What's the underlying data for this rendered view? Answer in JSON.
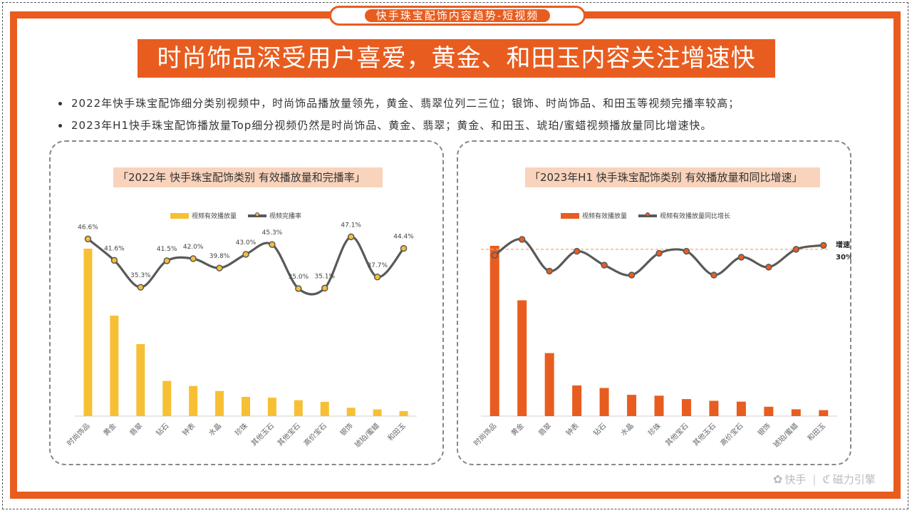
{
  "header": {
    "tab_title": "快手珠宝配饰内容趋势-短视频",
    "headline": "时尚饰品深受用户喜爱，黄金、和田玉内容关注增速快"
  },
  "bullets": [
    "2022年快手珠宝配饰细分类别视频中，时尚饰品播放量领先，黄金、翡翠位列二三位；银饰、时尚饰品、和田玉等视频完播率较高；",
    "2023年H1快手珠宝配饰播放量Top细分视频仍然是时尚饰品、黄金、翡翠；黄金、和田玉、琥珀/蜜蜡视频播放量同比增速快。"
  ],
  "colors": {
    "accent": "#e85d1f",
    "bar_2022": "#f7c034",
    "bar_2023": "#e85d1f",
    "line": "#595959"
  },
  "chart_data": [
    {
      "type": "bar",
      "title": "「2022年 快手珠宝配饰类别 有效播放量和完播率」",
      "categories": [
        "时尚饰品",
        "黄金",
        "翡翠",
        "钻石",
        "钟表",
        "水晶",
        "珍珠",
        "其他玉石",
        "其他宝石",
        "高价宝石",
        "银饰",
        "琥珀/蜜蜡",
        "和田玉"
      ],
      "series": [
        {
          "name": "视频有效播放量",
          "kind": "bar",
          "values": [
            100,
            60,
            43,
            21,
            18,
            15,
            11.5,
            11,
            9.5,
            8.5,
            5,
            4,
            3
          ]
        },
        {
          "name": "视频完播率",
          "kind": "line",
          "values": [
            46.6,
            41.6,
            35.3,
            41.5,
            42.0,
            39.8,
            43.0,
            45.3,
            35.0,
            35.1,
            47.1,
            37.7,
            44.4
          ],
          "labels": [
            "46.6%",
            "41.6%",
            "35.3%",
            "41.5%",
            "42.0%",
            "39.8%",
            "43.0%",
            "45.3%",
            "35.0%",
            "35.1%",
            "47.1%",
            "37.7%",
            "44.4%"
          ]
        }
      ],
      "legend": "top",
      "grid": false
    },
    {
      "type": "bar",
      "title": "「2023年H1 快手珠宝配饰类别 有效播放量和同比增速」",
      "categories": [
        "时尚饰品",
        "黄金",
        "翡翠",
        "钟表",
        "钻石",
        "水晶",
        "珍珠",
        "其他宝石",
        "其他玉石",
        "高价宝石",
        "银饰",
        "琥珀/蜜蜡",
        "和田玉"
      ],
      "series": [
        {
          "name": "视频有效播放量",
          "kind": "bar",
          "values": [
            100,
            68,
            37,
            18,
            16.5,
            12.5,
            12,
            10,
            9,
            8.5,
            5.5,
            4,
            3.5
          ]
        },
        {
          "name": "视频有效播放量同比增长",
          "kind": "line",
          "values": [
            27,
            35,
            19,
            29,
            22,
            17,
            28,
            29,
            17,
            26,
            21,
            30,
            32
          ]
        }
      ],
      "reference_line": {
        "value": 30,
        "label_top": "增速",
        "label_bottom": "30%"
      },
      "legend": "top",
      "grid": false
    }
  ],
  "branding": {
    "brand_a": "快手",
    "brand_b": "磁力引擎"
  }
}
